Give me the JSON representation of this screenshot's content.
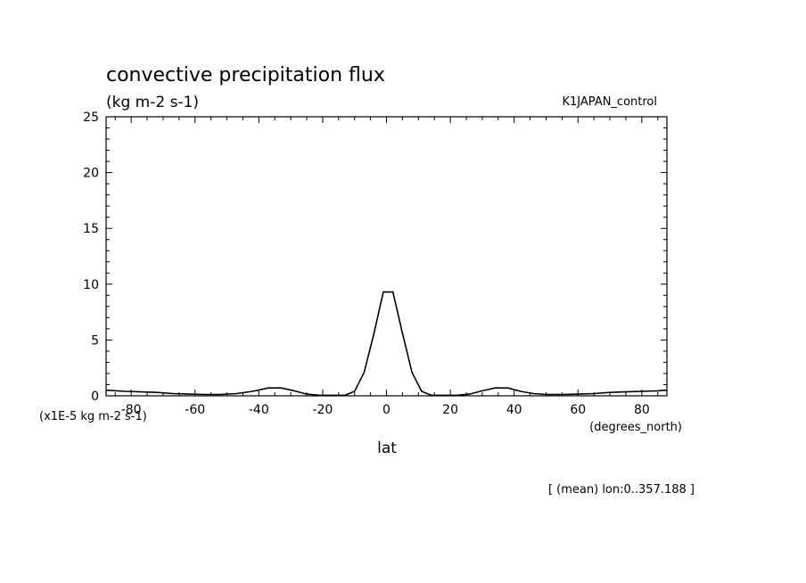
{
  "chart_data": {
    "type": "line",
    "title": "convective precipitation flux",
    "units": "(kg m-2 s-1)",
    "experiment": "K1JAPAN_control",
    "xlabel": "lat",
    "xunits": "(degrees_north)",
    "yscale_label": "(x1E-5 kg m-2 s-1)",
    "footer": "[ (mean) lon:0..357.188 ]",
    "xlim": [
      -87.86,
      87.86
    ],
    "ylim": [
      0,
      25
    ],
    "xticks": [
      -80,
      -60,
      -40,
      -20,
      0,
      20,
      40,
      60,
      80
    ],
    "xtick_labels": [
      "-80",
      "-60",
      "-40",
      "-20",
      "0",
      "20",
      "40",
      "60",
      "80"
    ],
    "yticks": [
      0,
      5,
      10,
      15,
      20,
      25
    ],
    "ytick_labels": [
      "0",
      "5",
      "10",
      "15",
      "20",
      "25"
    ],
    "series": [
      {
        "x": [
          -87.86,
          -82,
          -77,
          -72,
          -67,
          -62,
          -57,
          -52,
          -47,
          -42,
          -37,
          -33,
          -29,
          -25,
          -21,
          -17,
          -13,
          -10,
          -7,
          -4,
          -1,
          2,
          5,
          8,
          11,
          14,
          18,
          22,
          26,
          30,
          34,
          38,
          42,
          46,
          50,
          55,
          60,
          65,
          70,
          75,
          80,
          85,
          87.86
        ],
        "y": [
          0.5,
          0.4,
          0.35,
          0.3,
          0.2,
          0.15,
          0.12,
          0.12,
          0.2,
          0.4,
          0.7,
          0.7,
          0.45,
          0.15,
          0.05,
          0.05,
          0.05,
          0.4,
          2.1,
          5.5,
          9.3,
          9.3,
          5.6,
          2.1,
          0.4,
          0.05,
          0.05,
          0.05,
          0.15,
          0.45,
          0.7,
          0.7,
          0.4,
          0.2,
          0.12,
          0.12,
          0.15,
          0.2,
          0.3,
          0.35,
          0.4,
          0.45,
          0.5
        ]
      }
    ]
  }
}
